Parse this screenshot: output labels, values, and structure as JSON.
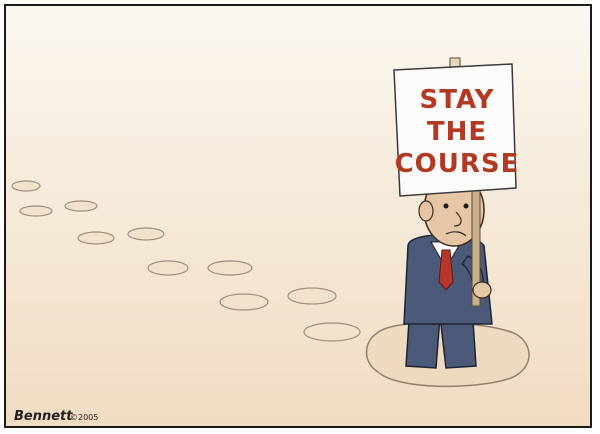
{
  "cartoon": {
    "sign_lines": [
      "STAY",
      "THE",
      "COURSE"
    ],
    "signature": "Bennett",
    "copyright": "©2005"
  },
  "colors": {
    "sign_text": "#b23a22",
    "suit": "#4a5a78",
    "tie": "#b8362a",
    "skin": "#e7c6a6",
    "background_top": "#fbf8f1",
    "background_bottom": "#f1dcc2"
  }
}
